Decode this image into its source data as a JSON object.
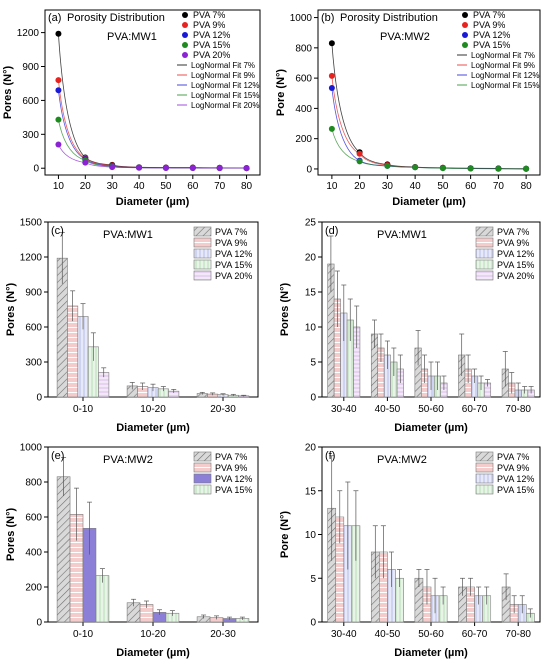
{
  "colors": {
    "PVA 7%": "#000000",
    "PVA 9%": "#e8231f",
    "PVA 12%": "#1a1ad6",
    "PVA 15%": "#1f8a1f",
    "PVA 20%": "#8b22d4"
  },
  "bar_fills": {
    "PVA 7%": "#d9d9d9",
    "PVA 9%": "#f4cccc",
    "PVA 12%": "#cfd3f2",
    "PVA 15%": "#cfe9cf",
    "PVA 20%": "#e7d2f2",
    "PVA 12% solid": "#8c7fd8"
  },
  "chart_data": [
    {
      "id": "a",
      "type": "scatter",
      "panel_label": "(a)",
      "title": "Porosity Distribution",
      "subtitle": "PVA:MW1",
      "xlabel": "Diameter (µm)",
      "ylabel": "Pores (N°)",
      "xlim": [
        5,
        85
      ],
      "ylim": [
        -60,
        1400
      ],
      "xticks": [
        10,
        20,
        30,
        40,
        50,
        60,
        70,
        80
      ],
      "yticks": [
        0,
        300,
        600,
        900,
        1200
      ],
      "x": [
        10,
        20,
        30,
        40,
        50,
        60,
        70,
        80
      ],
      "series": [
        {
          "name": "PVA 7%",
          "values": [
            1190,
            95,
            30,
            9,
            6,
            6,
            4,
            1
          ]
        },
        {
          "name": "PVA 9%",
          "values": [
            780,
            90,
            25,
            7,
            5,
            4,
            3,
            1
          ]
        },
        {
          "name": "PVA 12%",
          "values": [
            690,
            80,
            20,
            6,
            4,
            3,
            2,
            1
          ]
        },
        {
          "name": "PVA 15%",
          "values": [
            430,
            70,
            15,
            5,
            3,
            2,
            1,
            1
          ]
        },
        {
          "name": "PVA 20%",
          "values": [
            210,
            50,
            10,
            4,
            2,
            2,
            1,
            1
          ]
        }
      ],
      "fit_names": [
        "LogNormal Fit 7%",
        "LogNormal Fit 9%",
        "LogNormal Fit 12%",
        "LogNormal Fit 15%",
        "LogNormal Fit 20%"
      ],
      "legend": "top-right"
    },
    {
      "id": "b",
      "type": "scatter",
      "panel_label": "(b)",
      "title": "Porosity Distribution",
      "subtitle": "PVA:MW2",
      "xlabel": "Diameter (µm)",
      "ylabel": "Pore (N°)",
      "xlim": [
        5,
        85
      ],
      "ylim": [
        -40,
        1050
      ],
      "xticks": [
        10,
        20,
        30,
        40,
        50,
        60,
        70,
        80
      ],
      "yticks": [
        0,
        200,
        400,
        600,
        800,
        1000
      ],
      "x": [
        10,
        20,
        30,
        40,
        50,
        60,
        70,
        80
      ],
      "series": [
        {
          "name": "PVA 7%",
          "values": [
            830,
            110,
            30,
            13,
            8,
            5,
            4,
            1
          ]
        },
        {
          "name": "PVA 9%",
          "values": [
            615,
            100,
            25,
            12,
            8,
            4,
            2,
            1
          ]
        },
        {
          "name": "PVA 12%",
          "values": [
            535,
            55,
            20,
            11,
            6,
            4,
            2,
            1
          ]
        },
        {
          "name": "PVA 15%",
          "values": [
            265,
            50,
            20,
            11,
            5,
            3,
            1,
            1
          ]
        }
      ],
      "fit_names": [
        "LogNormal Fit 7%",
        "LogNormal Fit 9%",
        "LogNormal Fit 12%",
        "LogNormal Fit 15%"
      ],
      "legend": "top-right"
    },
    {
      "id": "c",
      "type": "bar",
      "panel_label": "(c)",
      "subtitle": "PVA:MW1",
      "xlabel": "Diameter (µm)",
      "ylabel": "Pores (N°)",
      "ylim": [
        0,
        1500
      ],
      "yticks": [
        0,
        300,
        600,
        900,
        1200,
        1500
      ],
      "categories": [
        "0-10",
        "10-20",
        "20-30"
      ],
      "series": [
        {
          "name": "PVA 7%",
          "values": [
            1190,
            95,
            30
          ],
          "errors": [
            220,
            30,
            10
          ]
        },
        {
          "name": "PVA 9%",
          "values": [
            780,
            90,
            25
          ],
          "errors": [
            130,
            30,
            10
          ]
        },
        {
          "name": "PVA 12%",
          "values": [
            690,
            80,
            20
          ],
          "errors": [
            110,
            30,
            8
          ]
        },
        {
          "name": "PVA 15%",
          "values": [
            430,
            70,
            15
          ],
          "errors": [
            120,
            20,
            8
          ]
        },
        {
          "name": "PVA 20%",
          "values": [
            210,
            50,
            10
          ],
          "errors": [
            40,
            15,
            5
          ]
        }
      ],
      "legend": "top-right"
    },
    {
      "id": "d",
      "type": "bar",
      "panel_label": "(d)",
      "subtitle": "PVA:MW1",
      "xlabel": "Diameter (µm)",
      "ylabel": "Pores (N°)",
      "ylim": [
        0,
        25
      ],
      "yticks": [
        0,
        5,
        10,
        15,
        20,
        25
      ],
      "categories": [
        "30-40",
        "40-50",
        "50-60",
        "60-70",
        "70-80"
      ],
      "series": [
        {
          "name": "PVA 7%",
          "values": [
            19,
            9,
            7,
            6,
            4
          ],
          "errors": [
            4,
            2,
            2.5,
            3,
            2.5
          ]
        },
        {
          "name": "PVA 9%",
          "values": [
            14,
            7,
            4,
            4,
            2
          ],
          "errors": [
            4,
            2,
            2,
            2,
            1.5
          ]
        },
        {
          "name": "PVA 12%",
          "values": [
            12,
            6,
            3,
            3,
            1
          ],
          "errors": [
            4,
            2,
            2,
            1,
            1
          ]
        },
        {
          "name": "PVA 15%",
          "values": [
            11,
            5,
            3,
            2,
            1
          ],
          "errors": [
            3,
            2,
            2,
            1,
            0.5
          ]
        },
        {
          "name": "PVA 20%",
          "values": [
            10,
            4,
            2,
            2,
            1
          ],
          "errors": [
            3,
            2,
            1,
            0.5,
            0.5
          ]
        }
      ],
      "legend": "top-right"
    },
    {
      "id": "e",
      "type": "bar",
      "panel_label": "(e)",
      "subtitle": "PVA:MW2",
      "xlabel": "Diameter (µm)",
      "ylabel": "Pores (N°)",
      "ylim": [
        0,
        1000
      ],
      "yticks": [
        0,
        200,
        400,
        600,
        800,
        1000
      ],
      "categories": [
        "0-10",
        "10-20",
        "20-30"
      ],
      "series": [
        {
          "name": "PVA 7%",
          "values": [
            830,
            110,
            30
          ],
          "errors": [
            110,
            20,
            10
          ]
        },
        {
          "name": "PVA 9%",
          "values": [
            615,
            100,
            25
          ],
          "errors": [
            150,
            20,
            10
          ]
        },
        {
          "name": "PVA 12%",
          "values": [
            535,
            55,
            20
          ],
          "errors": [
            150,
            15,
            8
          ]
        },
        {
          "name": "PVA 15%",
          "values": [
            265,
            50,
            20
          ],
          "errors": [
            40,
            15,
            8
          ]
        }
      ],
      "legend": "top-right"
    },
    {
      "id": "f",
      "type": "bar",
      "panel_label": "(f)",
      "subtitle": "PVA:MW2",
      "xlabel": "Diameter (µm)",
      "ylabel": "Pore (N°)",
      "ylim": [
        0,
        20
      ],
      "yticks": [
        0,
        5,
        10,
        15,
        20
      ],
      "categories": [
        "30-40",
        "40-50",
        "50-60",
        "60-70",
        "70-80"
      ],
      "series": [
        {
          "name": "PVA 7%",
          "values": [
            13,
            8,
            5,
            4,
            4
          ],
          "errors": [
            6,
            3,
            1,
            1,
            1.5
          ]
        },
        {
          "name": "PVA 9%",
          "values": [
            12,
            8,
            4,
            4,
            2
          ],
          "errors": [
            3,
            3,
            2,
            1,
            1
          ]
        },
        {
          "name": "PVA 12%",
          "values": [
            11,
            6,
            3,
            3,
            2
          ],
          "errors": [
            5,
            2,
            2,
            1,
            1
          ]
        },
        {
          "name": "PVA 15%",
          "values": [
            11,
            5,
            3,
            3,
            1
          ],
          "errors": [
            4,
            1,
            1,
            1,
            0.5
          ]
        }
      ],
      "legend": "top-right"
    }
  ]
}
